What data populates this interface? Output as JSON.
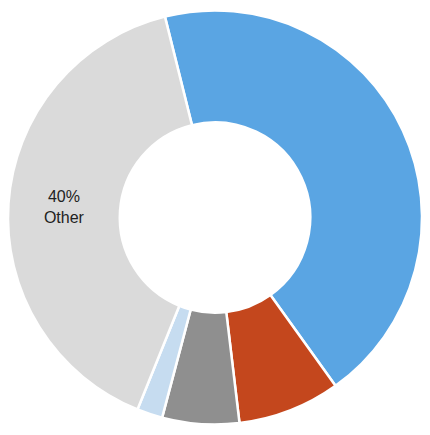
{
  "chart_data": {
    "type": "donut",
    "categories": [
      null,
      null,
      null,
      null,
      "Other"
    ],
    "values": [
      44,
      8,
      6,
      2,
      40
    ],
    "value_labels": [
      null,
      null,
      null,
      null,
      "40%"
    ],
    "colors": [
      "#5aa5e3",
      "#c4471d",
      "#8f8f8f",
      "#c6dcf0",
      "#dadada"
    ],
    "data_labels": true
  }
}
